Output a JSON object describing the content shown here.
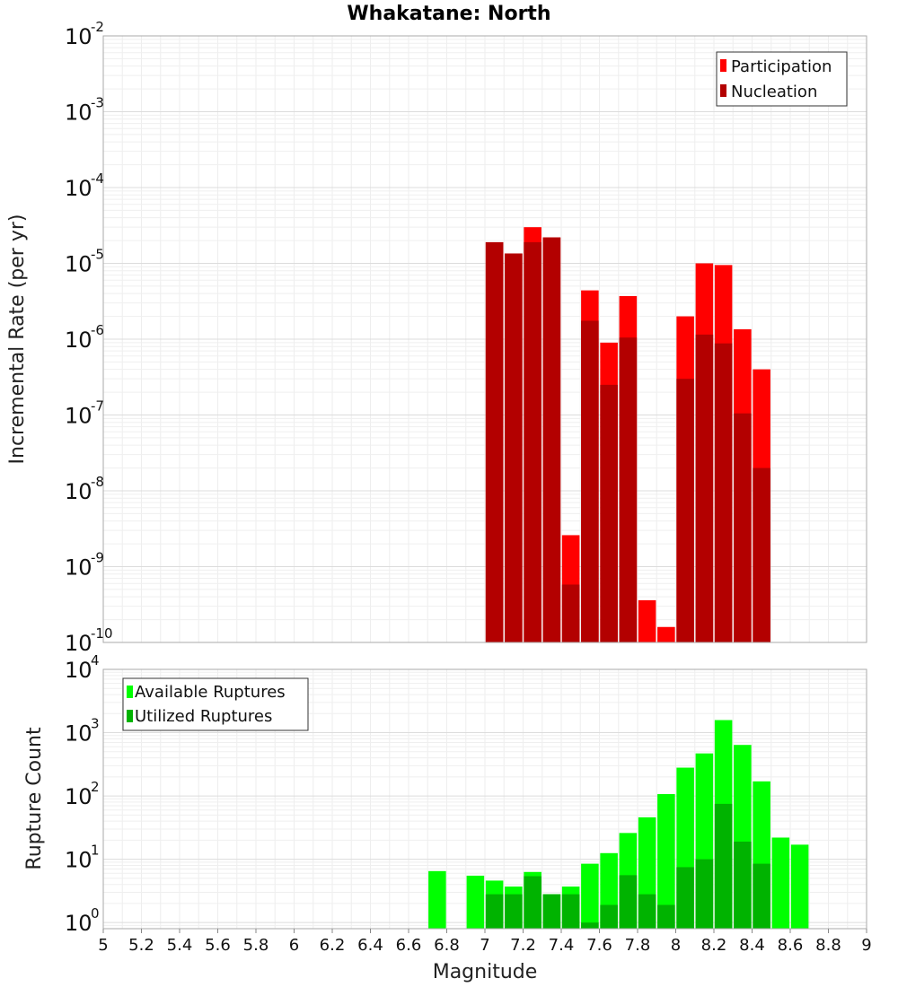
{
  "chart_data": [
    {
      "type": "bar",
      "title": "Whakatane: North",
      "xlabel": "",
      "ylabel": "Incremental Rate (per yr)",
      "x_scale": "linear",
      "y_scale": "log",
      "xlim": [
        5,
        9
      ],
      "ylim": [
        1e-10,
        0.01
      ],
      "grid": true,
      "legend_position": "top-right",
      "x": [
        7.0,
        7.1,
        7.2,
        7.3,
        7.4,
        7.5,
        7.6,
        7.7,
        7.8,
        7.9,
        8.0,
        8.1,
        8.2,
        8.3,
        8.4
      ],
      "series": [
        {
          "name": "Participation",
          "color": "#ff0000",
          "values": [
            1.9e-05,
            1.35e-05,
            3e-05,
            2.2e-05,
            2.6e-09,
            4.4e-06,
            9e-07,
            3.7e-06,
            3.6e-10,
            1.6e-10,
            2e-06,
            1e-05,
            9.5e-06,
            1.35e-06,
            4e-07
          ]
        },
        {
          "name": "Nucleation",
          "color": "#b30000",
          "values": [
            1.9e-05,
            1.35e-05,
            1.9e-05,
            2.2e-05,
            5.8e-10,
            1.75e-06,
            2.5e-07,
            1.05e-06,
            null,
            null,
            3e-07,
            1.15e-06,
            8.8e-07,
            1.05e-07,
            2e-08
          ]
        }
      ]
    },
    {
      "type": "bar",
      "title": "",
      "xlabel": "Magnitude",
      "ylabel": "Rupture Count",
      "x_scale": "linear",
      "y_scale": "log",
      "xlim": [
        5,
        9
      ],
      "ylim": [
        0.8,
        10000
      ],
      "grid": true,
      "legend_position": "top-left",
      "x": [
        6.7,
        6.8,
        6.9,
        7.0,
        7.1,
        7.2,
        7.3,
        7.4,
        7.5,
        7.6,
        7.7,
        7.8,
        7.9,
        8.0,
        8.1,
        8.2,
        8.3,
        8.4,
        8.5,
        8.6
      ],
      "series": [
        {
          "name": "Available Ruptures",
          "color": "#00ff00",
          "values": [
            6.5,
            null,
            5.5,
            4.6,
            3.7,
            6.3,
            2.8,
            3.7,
            8.5,
            12.5,
            26,
            46,
            107,
            280,
            470,
            1580,
            640,
            170,
            22,
            17
          ]
        },
        {
          "name": "Utilized Ruptures",
          "color": "#00b300",
          "values": [
            null,
            null,
            null,
            2.8,
            2.8,
            5.4,
            2.8,
            2.8,
            1.0,
            1.9,
            5.6,
            2.8,
            1.9,
            7.5,
            10,
            75,
            19,
            8.5,
            null,
            null
          ]
        }
      ]
    }
  ],
  "x_ticks": [
    "5",
    "5.2",
    "5.4",
    "5.6",
    "5.8",
    "6",
    "6.2",
    "6.4",
    "6.6",
    "6.8",
    "7",
    "7.2",
    "7.4",
    "7.6",
    "7.8",
    "8",
    "8.2",
    "8.4",
    "8.6",
    "8.8",
    "9"
  ],
  "top_y_ticks": [
    {
      "base": "10",
      "exp": "-2",
      "value": 0.01
    },
    {
      "base": "10",
      "exp": "-3",
      "value": 0.001
    },
    {
      "base": "10",
      "exp": "-4",
      "value": 0.0001
    },
    {
      "base": "10",
      "exp": "-5",
      "value": 1e-05
    },
    {
      "base": "10",
      "exp": "-6",
      "value": 1e-06
    },
    {
      "base": "10",
      "exp": "-7",
      "value": 1e-07
    },
    {
      "base": "10",
      "exp": "-8",
      "value": 1e-08
    },
    {
      "base": "10",
      "exp": "-9",
      "value": 1e-09
    },
    {
      "base": "10",
      "exp": "-10",
      "value": 1e-10
    }
  ],
  "bottom_y_ticks": [
    {
      "base": "10",
      "exp": "4",
      "value": 10000
    },
    {
      "base": "10",
      "exp": "3",
      "value": 1000
    },
    {
      "base": "10",
      "exp": "2",
      "value": 100
    },
    {
      "base": "10",
      "exp": "1",
      "value": 10
    },
    {
      "base": "10",
      "exp": "0",
      "value": 1
    }
  ]
}
